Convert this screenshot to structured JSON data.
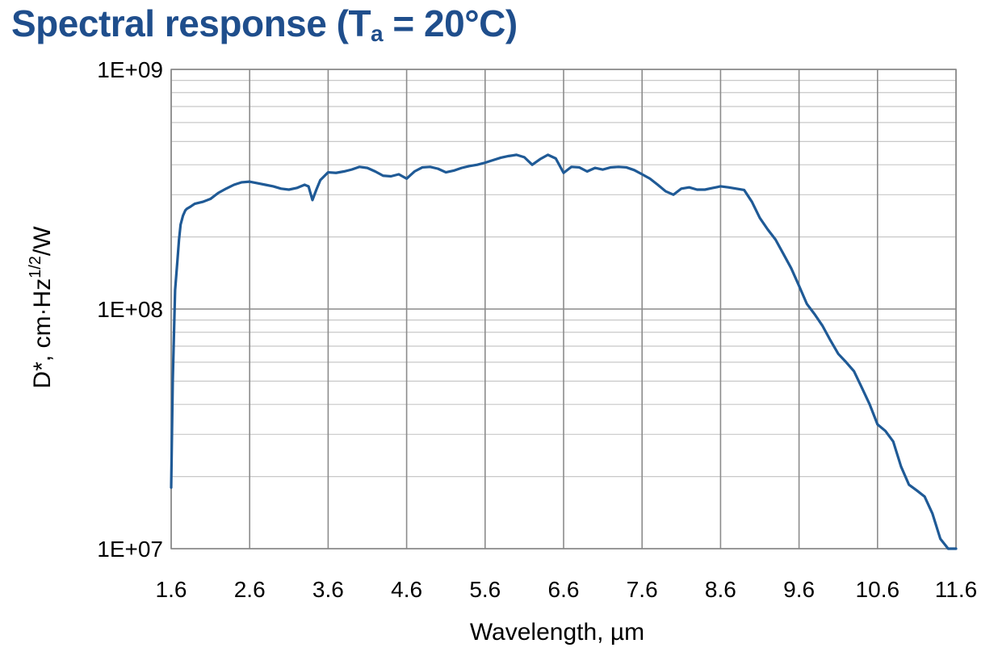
{
  "title": {
    "main": "Spectral response (T",
    "sub": "a",
    "tail": " = 20°C)"
  },
  "colors": {
    "title": "#1f4e8c",
    "line": "#1f5a96",
    "grid_major": "#8c8c8c",
    "grid_minor": "#c8c8c8",
    "frame": "#888888"
  },
  "chart_data": {
    "type": "line",
    "xlabel": "Wavelength, µm",
    "ylabel": "D*, cm·Hz1/2/W",
    "ylabel_parts": {
      "pre": "D*, cm·Hz",
      "sup": "1/2",
      "post": "/W"
    },
    "xlim": [
      1.6,
      11.6
    ],
    "ylim": [
      10000000,
      1000000000
    ],
    "yscale": "log",
    "grid": true,
    "x_ticks": [
      1.6,
      2.6,
      3.6,
      4.6,
      5.6,
      6.6,
      7.6,
      8.6,
      9.6,
      10.6,
      11.6
    ],
    "x_tick_labels": [
      "1.6",
      "2.6",
      "3.6",
      "4.6",
      "5.6",
      "6.6",
      "7.6",
      "8.6",
      "9.6",
      "10.6",
      "11.6"
    ],
    "y_ticks": [
      10000000,
      100000000,
      1000000000
    ],
    "y_tick_labels": [
      "1E+07",
      "1E+08",
      "1E+09"
    ],
    "series": [
      {
        "x": [
          1.6,
          1.62,
          1.65,
          1.68,
          1.7,
          1.72,
          1.75,
          1.78,
          1.8,
          1.85,
          1.9,
          2.0,
          2.1,
          2.2,
          2.3,
          2.4,
          2.5,
          2.6,
          2.7,
          2.8,
          2.9,
          3.0,
          3.1,
          3.2,
          3.3,
          3.35,
          3.4,
          3.45,
          3.5,
          3.6,
          3.7,
          3.8,
          3.9,
          4.0,
          4.1,
          4.2,
          4.3,
          4.4,
          4.5,
          4.6,
          4.7,
          4.8,
          4.9,
          5.0,
          5.1,
          5.2,
          5.3,
          5.4,
          5.5,
          5.6,
          5.7,
          5.8,
          5.9,
          6.0,
          6.1,
          6.2,
          6.3,
          6.4,
          6.5,
          6.6,
          6.7,
          6.8,
          6.9,
          7.0,
          7.1,
          7.2,
          7.3,
          7.4,
          7.5,
          7.6,
          7.7,
          7.8,
          7.9,
          8.0,
          8.1,
          8.2,
          8.3,
          8.4,
          8.5,
          8.6,
          8.7,
          8.8,
          8.9,
          9.0,
          9.1,
          9.2,
          9.3,
          9.4,
          9.5,
          9.6,
          9.7,
          9.8,
          9.9,
          10.0,
          10.1,
          10.2,
          10.3,
          10.4,
          10.5,
          10.6,
          10.7,
          10.8,
          10.9,
          11.0,
          11.1,
          11.2,
          11.3,
          11.4,
          11.5,
          11.6
        ],
        "y": [
          18000000,
          50000000,
          120000000,
          160000000,
          195000000,
          225000000,
          245000000,
          258000000,
          262000000,
          268000000,
          275000000,
          280000000,
          288000000,
          305000000,
          318000000,
          330000000,
          338000000,
          340000000,
          335000000,
          330000000,
          325000000,
          318000000,
          315000000,
          320000000,
          330000000,
          325000000,
          285000000,
          315000000,
          345000000,
          372000000,
          370000000,
          375000000,
          382000000,
          392000000,
          388000000,
          375000000,
          360000000,
          358000000,
          365000000,
          350000000,
          375000000,
          390000000,
          392000000,
          385000000,
          372000000,
          378000000,
          388000000,
          395000000,
          400000000,
          408000000,
          418000000,
          428000000,
          435000000,
          440000000,
          430000000,
          400000000,
          422000000,
          440000000,
          425000000,
          370000000,
          392000000,
          390000000,
          375000000,
          388000000,
          382000000,
          390000000,
          392000000,
          390000000,
          380000000,
          365000000,
          350000000,
          330000000,
          310000000,
          300000000,
          318000000,
          322000000,
          315000000,
          315000000,
          320000000,
          325000000,
          322000000,
          318000000,
          314000000,
          280000000,
          240000000,
          215000000,
          195000000,
          170000000,
          148000000,
          125000000,
          105000000,
          95000000,
          85000000,
          74000000,
          65000000,
          60000000,
          55000000,
          47000000,
          40000000,
          33000000,
          31000000,
          28000000,
          22000000,
          18500000,
          17500000,
          16500000,
          14000000,
          11000000,
          10000000,
          10000000
        ]
      }
    ]
  }
}
